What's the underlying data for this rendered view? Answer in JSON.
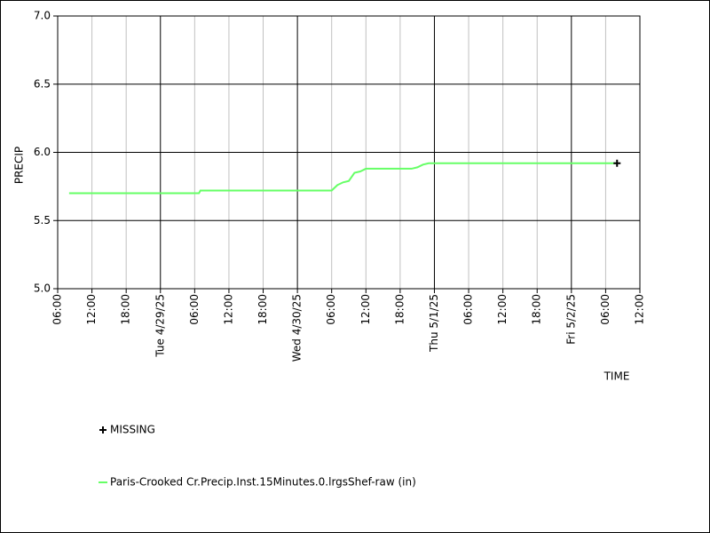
{
  "chart_data": {
    "type": "line",
    "y_label": "PRECIP",
    "x_label": "TIME",
    "x": [
      "2025-04-28 08:00",
      "2025-04-29 06:45",
      "2025-04-29 07:00",
      "2025-04-30 06:00",
      "2025-04-30 07:00",
      "2025-04-30 08:00",
      "2025-04-30 09:00",
      "2025-04-30 10:00",
      "2025-04-30 11:00",
      "2025-04-30 12:00",
      "2025-04-30 20:00",
      "2025-04-30 21:00",
      "2025-04-30 22:00",
      "2025-04-30 23:00",
      "2025-05-02 08:00"
    ],
    "series": [
      {
        "name": "Paris-Crooked Cr.Precip.Inst.15Minutes.0.lrgsShef-raw (in)",
        "color": "#66ff66",
        "values": [
          5.7,
          5.7,
          5.72,
          5.72,
          5.76,
          5.78,
          5.79,
          5.85,
          5.86,
          5.88,
          5.88,
          5.89,
          5.91,
          5.92,
          5.92
        ]
      }
    ],
    "missing": {
      "name": "MISSING",
      "color": "#000000",
      "x": [
        "2025-05-02 08:00"
      ],
      "values": [
        5.92
      ]
    },
    "xlim": [
      "2025-04-28 06:00",
      "2025-05-02 12:00"
    ],
    "xticks": [
      {
        "value": "2025-04-28 06:00",
        "label": "06:00"
      },
      {
        "value": "2025-04-28 12:00",
        "label": "12:00"
      },
      {
        "value": "2025-04-28 18:00",
        "label": "18:00"
      },
      {
        "value": "2025-04-29 00:00",
        "label": "Tue 4/29/25"
      },
      {
        "value": "2025-04-29 06:00",
        "label": "06:00"
      },
      {
        "value": "2025-04-29 12:00",
        "label": "12:00"
      },
      {
        "value": "2025-04-29 18:00",
        "label": "18:00"
      },
      {
        "value": "2025-04-30 00:00",
        "label": "Wed 4/30/25"
      },
      {
        "value": "2025-04-30 06:00",
        "label": "06:00"
      },
      {
        "value": "2025-04-30 12:00",
        "label": "12:00"
      },
      {
        "value": "2025-04-30 18:00",
        "label": "18:00"
      },
      {
        "value": "2025-05-01 00:00",
        "label": "Thu 5/1/25"
      },
      {
        "value": "2025-05-01 06:00",
        "label": "06:00"
      },
      {
        "value": "2025-05-01 12:00",
        "label": "12:00"
      },
      {
        "value": "2025-05-01 18:00",
        "label": "18:00"
      },
      {
        "value": "2025-05-02 00:00",
        "label": "Fri 5/2/25"
      },
      {
        "value": "2025-05-02 06:00",
        "label": "06:00"
      },
      {
        "value": "2025-05-02 12:00",
        "label": "12:00"
      }
    ],
    "ylim": [
      5,
      7
    ],
    "yticks": [
      {
        "value": 5,
        "label": "5.0"
      },
      5.5,
      {
        "value": 6,
        "label": "6.0"
      },
      6.5,
      {
        "value": 7,
        "label": "7.0"
      }
    ],
    "grid": true
  }
}
